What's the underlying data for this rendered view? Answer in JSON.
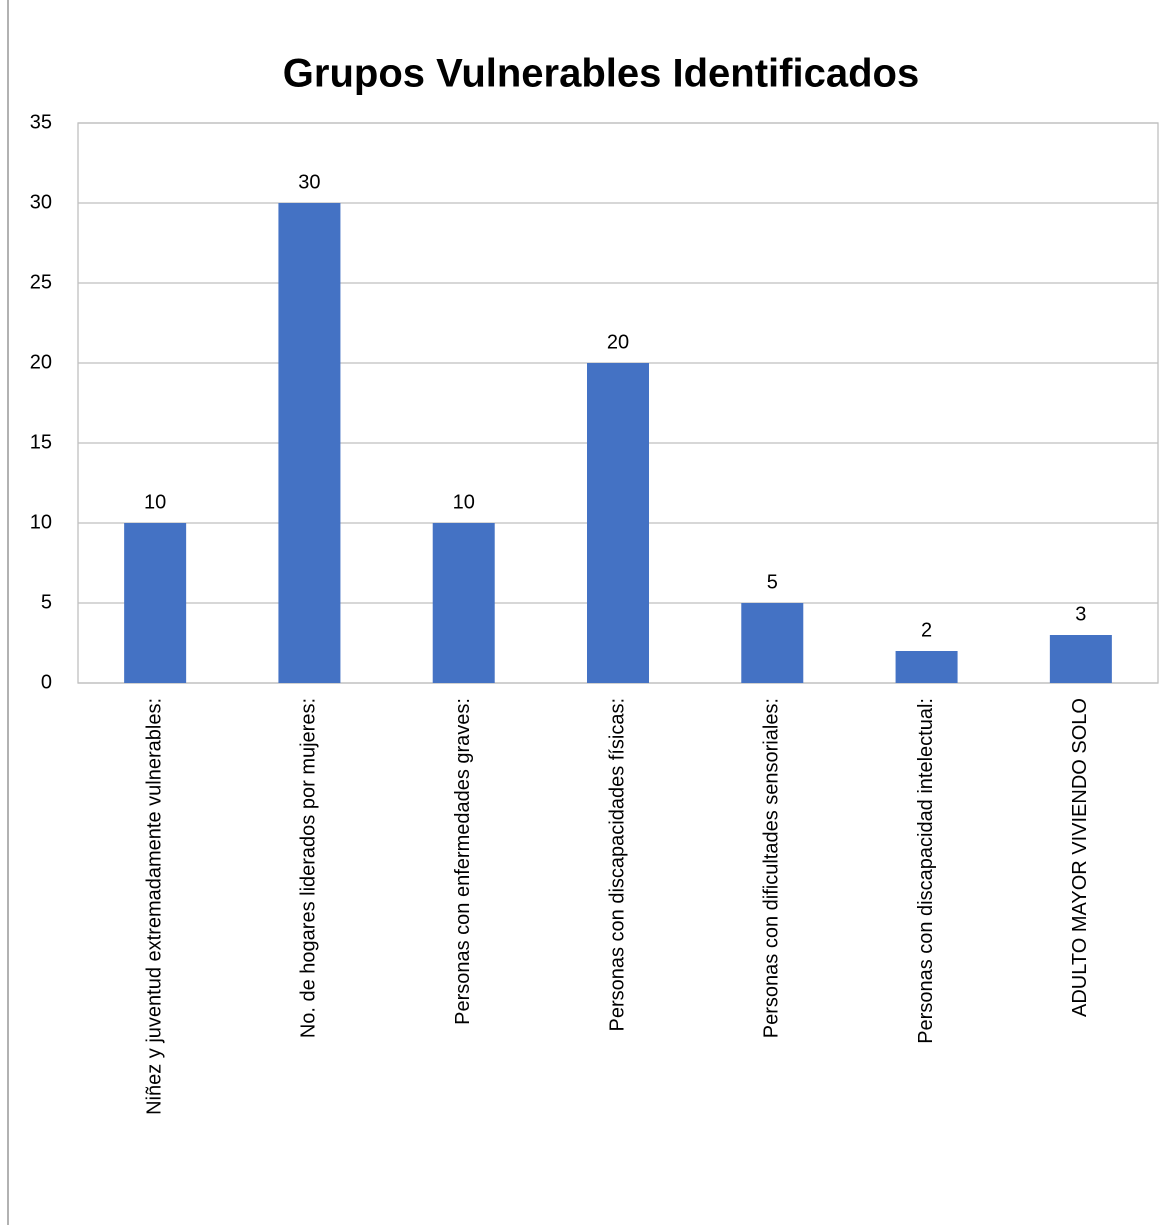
{
  "chart_data": {
    "type": "bar",
    "title": "Grupos Vulnerables Identificados",
    "categories": [
      "Niñez y juventud extremadamente vulnerables:",
      "No. de hogares liderados por mujeres:",
      "Personas con enfermedades graves:",
      "Personas con discapacidades físicas:",
      "Personas con dificultades sensoriales:",
      "Personas con discapacidad intelectual:",
      "ADULTO MAYOR VIVIENDO SOLO"
    ],
    "values": [
      10,
      30,
      10,
      20,
      5,
      2,
      3
    ],
    "color": "#4472c4",
    "ylim": [
      0,
      35
    ],
    "yticks": [
      0,
      5,
      10,
      15,
      20,
      25,
      30,
      35
    ],
    "grid": true,
    "data_labels": true
  }
}
